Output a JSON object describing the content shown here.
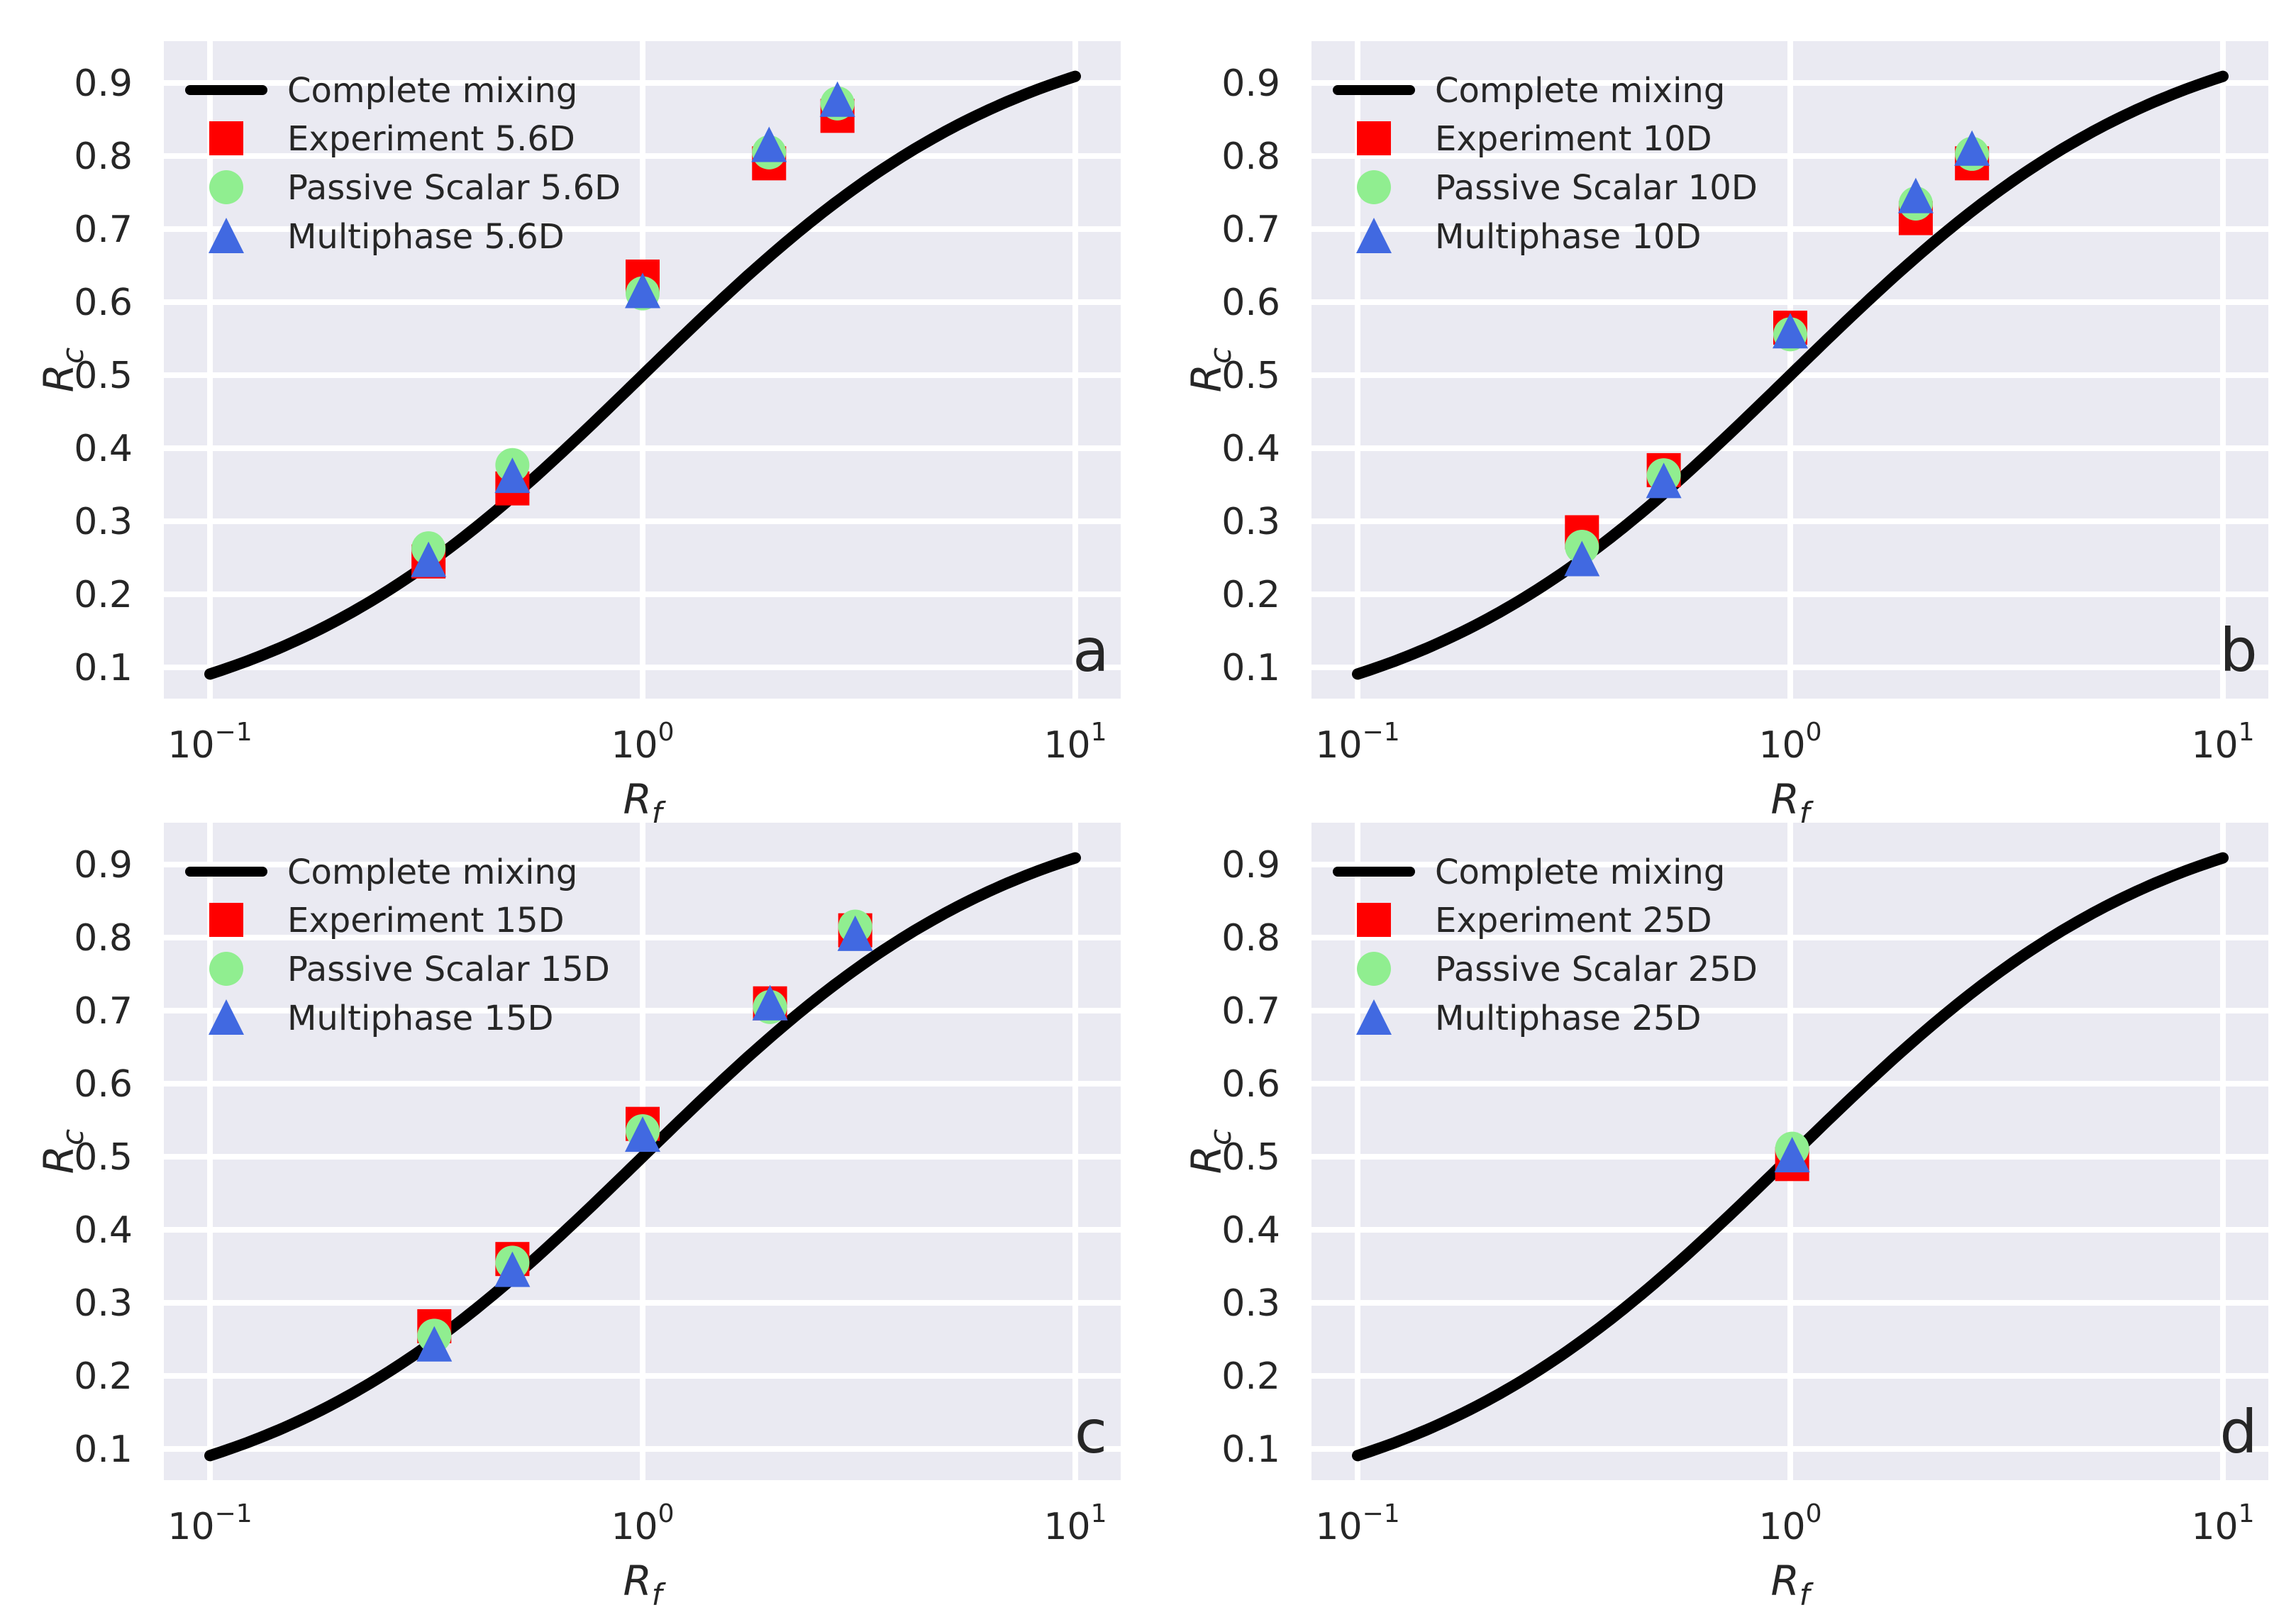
{
  "figure": {
    "background": "#ffffff",
    "axes_background": "#eaeaf2",
    "grid_color": "#ffffff",
    "text_color": "#262626",
    "curve_color": "#000000",
    "series_colors": {
      "experiment": "#ff0000",
      "passive_scalar": "#90ee90",
      "multiphase": "#4169e1"
    }
  },
  "axes": {
    "x_scale": "log",
    "grid": true,
    "legend_position": "upper-left",
    "xlabel_base": "R",
    "xlabel_sub": "f",
    "ylabel_base": "R",
    "ylabel_sub": "c",
    "x_ticks": [
      {
        "value": 0.1,
        "label_base": "10",
        "label_exp": "−1"
      },
      {
        "value": 1,
        "label_base": "10",
        "label_exp": "0"
      },
      {
        "value": 10,
        "label_base": "10",
        "label_exp": "1"
      }
    ],
    "y_ticks": [
      0.1,
      0.2,
      0.3,
      0.4,
      0.5,
      0.6,
      0.7,
      0.8,
      0.9
    ],
    "xlim": [
      0.08,
      12
    ],
    "ylim": [
      0.057,
      0.957
    ]
  },
  "chart_data": [
    {
      "type": "scatter",
      "panel_label": "a",
      "station": "5.6D",
      "curve": {
        "label": "Complete mixing",
        "formula": "Rc = Rf / (1 + Rf)",
        "x_range": [
          0.1,
          10
        ]
      },
      "series": [
        {
          "key": "experiment",
          "label": "Experiment 5.6D",
          "marker": "square",
          "x": [
            0.32,
            0.5,
            1.0,
            1.96,
            2.82
          ],
          "y": [
            0.245,
            0.345,
            0.635,
            0.79,
            0.855
          ]
        },
        {
          "key": "passive_scalar",
          "label": "Passive Scalar 5.6D",
          "marker": "circle",
          "x": [
            0.32,
            0.5,
            1.0,
            1.96,
            2.82
          ],
          "y": [
            0.263,
            0.377,
            0.612,
            0.805,
            0.872
          ]
        },
        {
          "key": "multiphase",
          "label": "Multiphase 5.6D",
          "marker": "triangle",
          "x": [
            0.32,
            0.5,
            1.0,
            1.96,
            2.82
          ],
          "y": [
            0.247,
            0.362,
            0.615,
            0.815,
            0.877
          ]
        }
      ]
    },
    {
      "type": "scatter",
      "panel_label": "b",
      "station": "10D",
      "curve": {
        "label": "Complete mixing",
        "formula": "Rc = Rf / (1 + Rf)",
        "x_range": [
          0.1,
          10
        ]
      },
      "series": [
        {
          "key": "experiment",
          "label": "Experiment 10D",
          "marker": "square",
          "x": [
            0.33,
            0.51,
            1.0,
            1.95,
            2.63
          ],
          "y": [
            0.285,
            0.37,
            0.565,
            0.715,
            0.79
          ]
        },
        {
          "key": "passive_scalar",
          "label": "Passive Scalar 10D",
          "marker": "circle",
          "x": [
            0.33,
            0.51,
            1.0,
            1.95,
            2.63
          ],
          "y": [
            0.265,
            0.363,
            0.556,
            0.735,
            0.803
          ]
        },
        {
          "key": "multiphase",
          "label": "Multiphase 10D",
          "marker": "triangle",
          "x": [
            0.33,
            0.51,
            1.0,
            1.95,
            2.63
          ],
          "y": [
            0.248,
            0.355,
            0.56,
            0.745,
            0.81
          ]
        }
      ]
    },
    {
      "type": "scatter",
      "panel_label": "c",
      "station": "15D",
      "curve": {
        "label": "Complete mixing",
        "formula": "Rc = Rf / (1 + Rf)",
        "x_range": [
          0.1,
          10
        ]
      },
      "series": [
        {
          "key": "experiment",
          "label": "Experiment 15D",
          "marker": "square",
          "x": [
            0.33,
            0.5,
            1.0,
            1.97,
            3.1
          ],
          "y": [
            0.268,
            0.36,
            0.545,
            0.71,
            0.81
          ]
        },
        {
          "key": "passive_scalar",
          "label": "Passive Scalar 15D",
          "marker": "circle",
          "x": [
            0.33,
            0.5,
            1.0,
            1.97,
            3.1
          ],
          "y": [
            0.255,
            0.355,
            0.535,
            0.705,
            0.815
          ]
        },
        {
          "key": "multiphase",
          "label": "Multiphase 15D",
          "marker": "triangle",
          "x": [
            0.33,
            0.5,
            1.0,
            1.97,
            3.1
          ],
          "y": [
            0.243,
            0.345,
            0.53,
            0.71,
            0.805
          ]
        }
      ]
    },
    {
      "type": "scatter",
      "panel_label": "d",
      "station": "25D",
      "curve": {
        "label": "Complete mixing",
        "formula": "Rc = Rf / (1 + Rf)",
        "x_range": [
          0.1,
          10
        ]
      },
      "series": [
        {
          "key": "experiment",
          "label": "Experiment 25D",
          "marker": "square",
          "x": [
            1.01
          ],
          "y": [
            0.49
          ]
        },
        {
          "key": "passive_scalar",
          "label": "Passive Scalar 25D",
          "marker": "circle",
          "x": [
            1.01
          ],
          "y": [
            0.511
          ]
        },
        {
          "key": "multiphase",
          "label": "Multiphase 25D",
          "marker": "triangle",
          "x": [
            1.01
          ],
          "y": [
            0.502
          ]
        }
      ]
    }
  ]
}
